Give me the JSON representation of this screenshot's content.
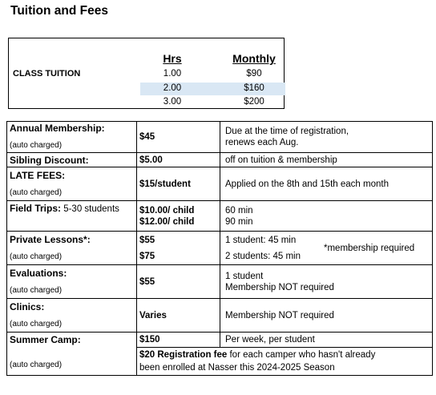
{
  "title": "Tuition and Fees",
  "tuition": {
    "label": "CLASS TUITION",
    "headers": {
      "hrs": "Hrs",
      "monthly": "Monthly"
    },
    "rows": [
      {
        "hrs": "1.00",
        "monthly": "$90"
      },
      {
        "hrs": "2.00",
        "monthly": "$160"
      },
      {
        "hrs": "3.00",
        "monthly": "$200"
      }
    ],
    "highlight_color": "#d9e7f4"
  },
  "fees": {
    "annual": {
      "label": "Annual Membership:",
      "note": "(auto charged)",
      "amount": "$45",
      "desc1": "Due at the time of registration,",
      "desc2": "renews each Aug."
    },
    "sibling": {
      "label": "Sibling Discount:",
      "amount": "$5.00",
      "desc": "off on tuition & membership"
    },
    "late": {
      "label": "LATE FEES:",
      "note": "(auto charged)",
      "amount": "$15/student",
      "desc": "Applied on the 8th and 15th each month"
    },
    "field": {
      "label": "Field Trips:",
      "label_rest": " 5-30 students",
      "amount1": "$10.00/ child",
      "amount2": "$12.00/ child",
      "desc1": "60 min",
      "desc2": "90 min"
    },
    "private": {
      "label": "Private Lessons*:",
      "note": "(auto charged)",
      "amount1": "$55",
      "amount2": "$75",
      "desc1": "1 student: 45 min",
      "desc2": "2 students: 45 min",
      "side_note": "*membership required"
    },
    "evaluations": {
      "label": "Evaluations:",
      "note": "(auto charged)",
      "amount": "$55",
      "desc1": "1 student",
      "desc2": "Membership NOT required"
    },
    "clinics": {
      "label": "Clinics:",
      "note": "(auto charged)",
      "amount": "Varies",
      "desc": "Membership NOT required"
    },
    "camp": {
      "label": "Summer Camp:",
      "note": "(auto charged)",
      "amount": "$150",
      "desc": "Per week, per student",
      "reg_bold": "$20 Registration fee",
      "reg_rest": " for each camper who hasn't already",
      "reg_line2": "been enrolled at Nasser this 2024-2025 Season"
    }
  }
}
